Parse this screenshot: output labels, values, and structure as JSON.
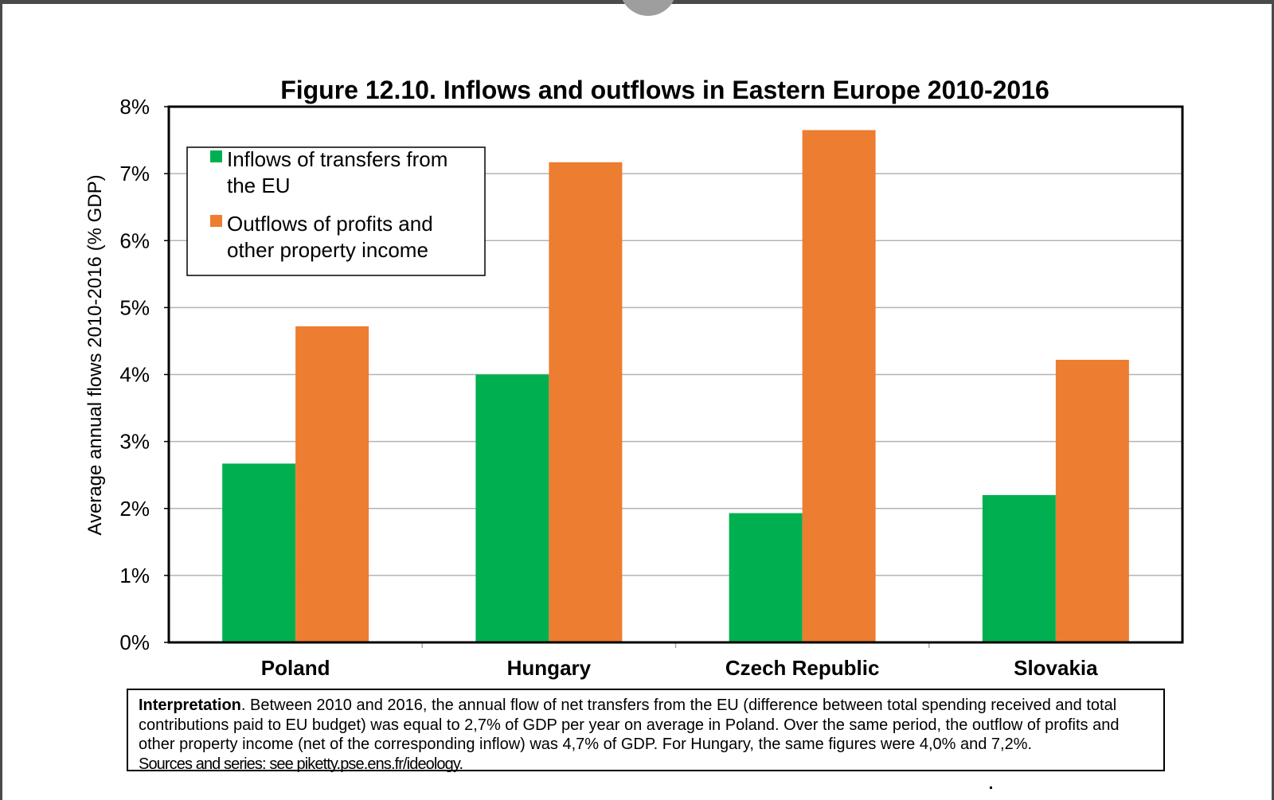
{
  "chart_data": {
    "type": "bar",
    "title": "Figure 12.10. Inflows and outflows in Eastern Europe 2010-2016",
    "ylabel": "Average annual flows 2010-2016 (% GDP)",
    "xlabel": "",
    "ylim": [
      0,
      8
    ],
    "yticks": [
      "0%",
      "1%",
      "2%",
      "3%",
      "4%",
      "5%",
      "6%",
      "7%",
      "8%"
    ],
    "grid": true,
    "legend_position": "top-left",
    "categories": [
      "Poland",
      "Hungary",
      "Czech Republic",
      "Slovakia"
    ],
    "series": [
      {
        "name": "Inflows of transfers from the EU",
        "legend_lines": [
          "Inflows of transfers from",
          "the EU"
        ],
        "color": "#00b050",
        "values": [
          2.67,
          4.0,
          1.93,
          2.2
        ]
      },
      {
        "name": "Outflows of profits and other property income",
        "legend_lines": [
          "Outflows of profits and",
          "other property income"
        ],
        "color": "#ed7d31",
        "values": [
          4.72,
          7.17,
          7.65,
          4.22
        ]
      }
    ]
  },
  "interpretation": {
    "label": "Interpretation",
    "text": ". Between 2010 and 2016, the annual flow of net transfers from the EU (difference between total spending received and total contributions paid to EU budget) was equal to 2,7% of GDP per year on average in Poland. Over the same period, the outflow of profits and other property income (net of the corresponding inflow) was 4,7% of GDP. For Hungary, the same figures were 4,0% and 7,2%.",
    "sources": "Sources and series: see piketty.pse.ens.fr/ideology."
  }
}
